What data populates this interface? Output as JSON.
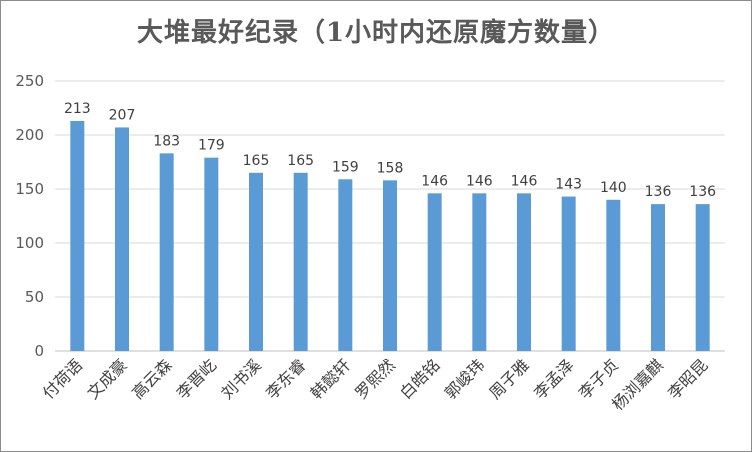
{
  "chart_data": {
    "type": "bar",
    "title": "大堆最好纪录（1小时内还原魔方数量）",
    "xlabel": "",
    "ylabel": "",
    "ylim": [
      0,
      250
    ],
    "yticks": [
      0,
      50,
      100,
      150,
      200,
      250
    ],
    "grid": true,
    "legend": "none",
    "bar_color": "#5b9bd5",
    "categories": [
      "付荷语",
      "文成豪",
      "高云森",
      "李晋屹",
      "刘书溪",
      "李东睿",
      "韩懿轩",
      "罗熙然",
      "白皓铭",
      "郭峻玮",
      "周子雅",
      "李孟泽",
      "李子贞",
      "杨浏嘉麒",
      "李昭昆"
    ],
    "values": [
      213,
      207,
      183,
      179,
      165,
      165,
      159,
      158,
      146,
      146,
      146,
      143,
      140,
      136,
      136
    ]
  }
}
